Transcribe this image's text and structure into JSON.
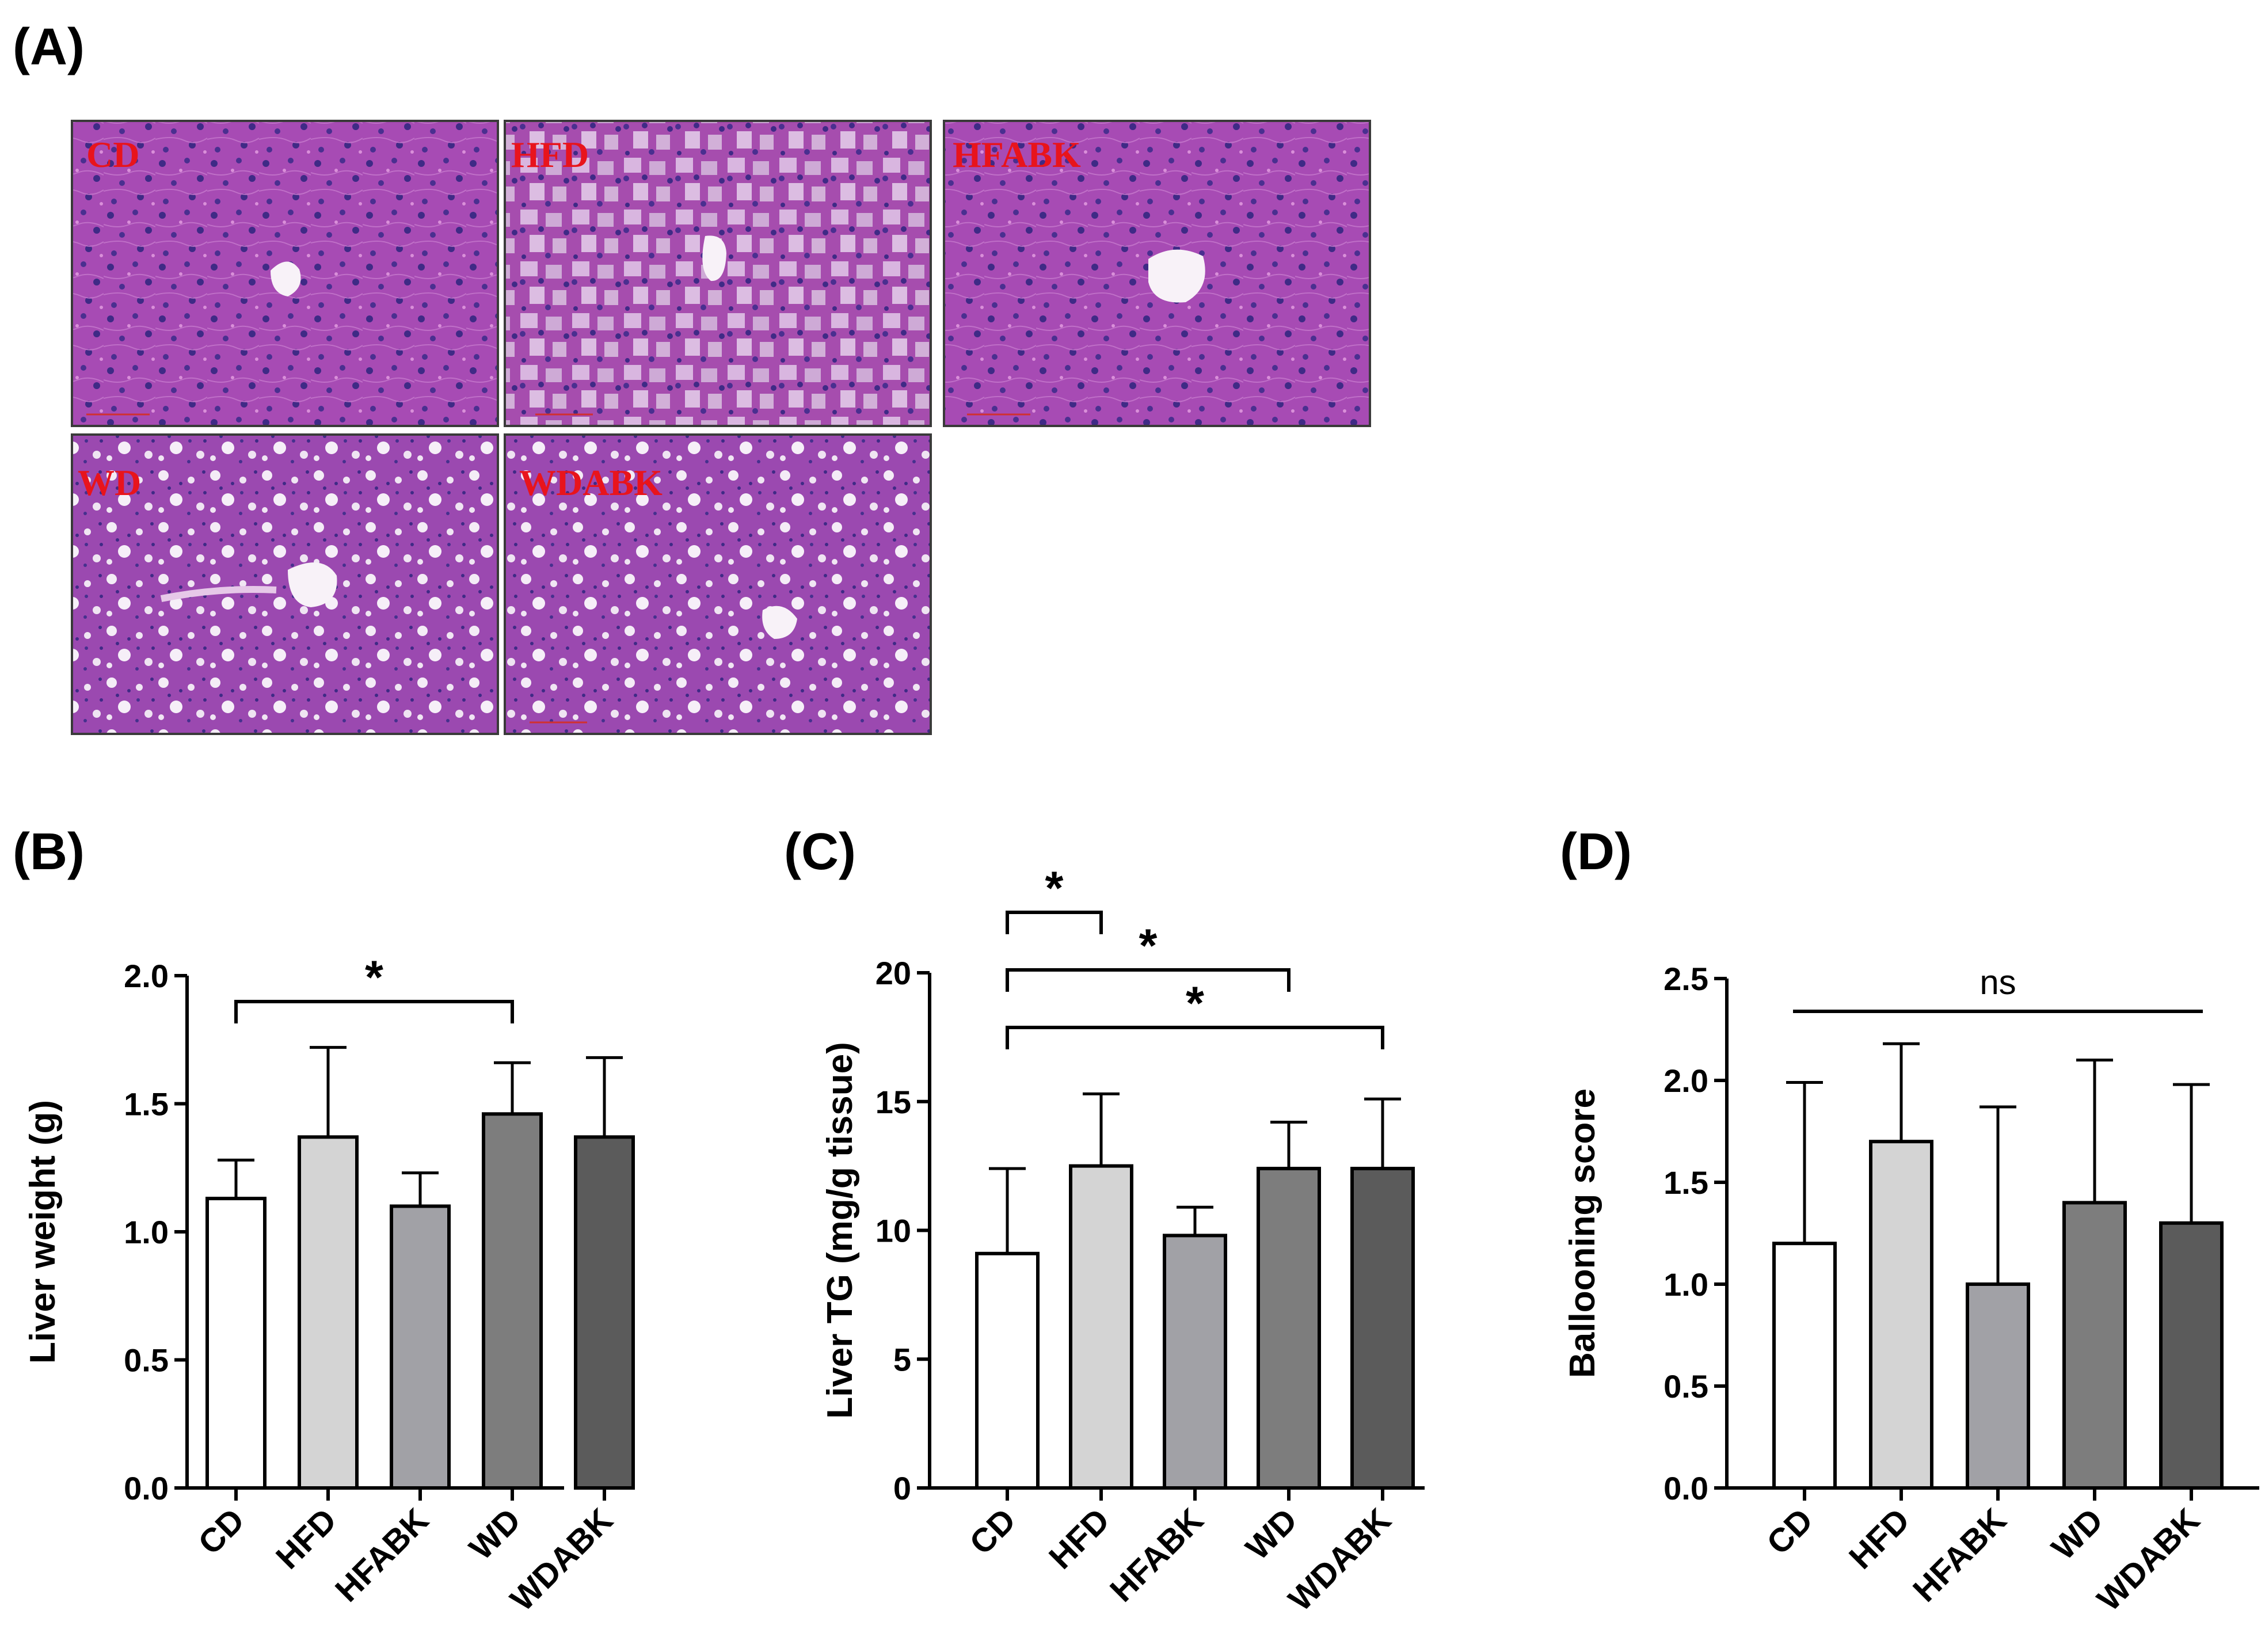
{
  "panel_labels": {
    "a": "(A)",
    "b": "(B)",
    "c": "(C)",
    "d": "(D)"
  },
  "micrographs": [
    {
      "label": "CD",
      "type": "normal"
    },
    {
      "label": "HFD",
      "type": "hfd"
    },
    {
      "label": "HFABK",
      "type": "normal"
    },
    {
      "label": "WD",
      "type": "wd"
    },
    {
      "label": "WDABK",
      "type": "wd"
    }
  ],
  "colors": {
    "CD": "#ffffff",
    "HFD": "#d4d4d4",
    "HFABK": "#a1a1a6",
    "WD": "#7d7d7d",
    "WDABK": "#5b5b5b",
    "tissue": "#a74bb4",
    "nuclei": "#3f2a86",
    "label_red": "#e8141c"
  },
  "chart_data": [
    {
      "id": "B",
      "type": "bar",
      "categories": [
        "CD",
        "HFD",
        "HFABK",
        "WD",
        "WDABK"
      ],
      "values": [
        1.13,
        1.37,
        1.1,
        1.46,
        1.37
      ],
      "errors": [
        0.15,
        0.35,
        0.13,
        0.2,
        0.31
      ],
      "ylabel": "Liver weight (g)",
      "ylim": [
        0,
        2.0
      ],
      "yticks": [
        "0.0",
        "0.5",
        "1.0",
        "1.5",
        "2.0"
      ],
      "significance": [
        {
          "from": 0,
          "to": 3,
          "label": "*"
        }
      ]
    },
    {
      "id": "C",
      "type": "bar",
      "categories": [
        "CD",
        "HFD",
        "HFABK",
        "WD",
        "WDABK"
      ],
      "values": [
        9.1,
        12.5,
        9.8,
        12.4,
        12.4
      ],
      "errors": [
        3.3,
        2.8,
        1.1,
        1.8,
        2.7
      ],
      "ylabel": "Liver TG (mg/g tissue)",
      "ylim": [
        0,
        20
      ],
      "yticks": [
        "0",
        "5",
        "10",
        "15",
        "20"
      ],
      "significance": [
        {
          "from": 0,
          "to": 1,
          "label": "*"
        },
        {
          "from": 0,
          "to": 3,
          "label": "*"
        },
        {
          "from": 0,
          "to": 4,
          "label": "*"
        }
      ]
    },
    {
      "id": "D",
      "type": "bar",
      "categories": [
        "CD",
        "HFD",
        "HFABK",
        "WD",
        "WDABK"
      ],
      "values": [
        1.2,
        1.7,
        1.0,
        1.4,
        1.3
      ],
      "errors": [
        0.79,
        0.48,
        0.87,
        0.7,
        0.68
      ],
      "ylabel": "Ballooning score",
      "ylim": [
        0,
        2.5
      ],
      "yticks": [
        "0.0",
        "0.5",
        "1.0",
        "1.5",
        "2.0",
        "2.5"
      ],
      "significance": [
        {
          "from": 0,
          "to": 4,
          "label": "ns",
          "style": "line"
        }
      ]
    }
  ]
}
